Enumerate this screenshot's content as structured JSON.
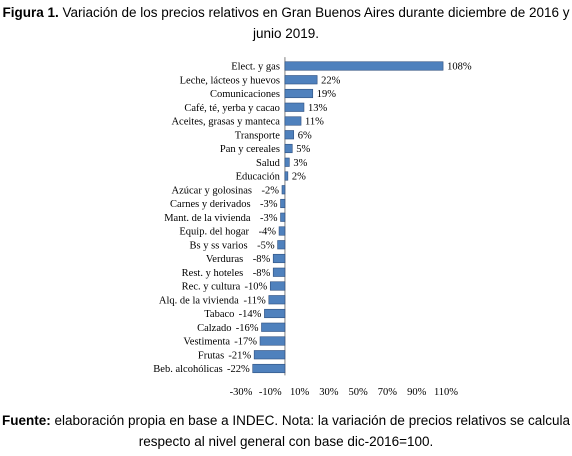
{
  "caption": {
    "figure_label": "Figura 1.",
    "figure_text": "Variación de los precios relativos en Gran Buenos Aires durante diciembre de 2016 y junio 2019.",
    "source_label": "Fuente:",
    "source_text": "elaboración propia en base a INDEC. Nota: la variación de precios relativos se calcula respecto al nivel general con base dic-2016=100."
  },
  "chart_data": {
    "type": "bar",
    "orientation": "horizontal",
    "categories": [
      "Elect. y gas",
      "Leche, lácteos y huevos",
      "Comunicaciones",
      "Café, té, yerba y cacao",
      "Aceites, grasas y manteca",
      "Transporte",
      "Pan y cereales",
      "Salud",
      "Educación",
      "Azúcar y  golosinas",
      "Carnes y derivados",
      "Mant. de la vivienda",
      "Equip. del hogar",
      "Bs y ss varios",
      "Verduras",
      "Rest. y hoteles",
      "Rec. y cultura",
      "Alq. de la vivienda",
      "Tabaco",
      "Calzado",
      "Vestimenta",
      "Frutas",
      "Beb. alcohólicas"
    ],
    "values": [
      108,
      22,
      19,
      13,
      11,
      6,
      5,
      3,
      2,
      -2,
      -3,
      -3,
      -4,
      -5,
      -8,
      -8,
      -10,
      -11,
      -14,
      -16,
      -17,
      -21,
      -22
    ],
    "value_labels": [
      "108%",
      "22%",
      "19%",
      "13%",
      "11%",
      "6%",
      "5%",
      "3%",
      "2%",
      "-2%",
      "-3%",
      "-3%",
      "-4%",
      "-5%",
      "-8%",
      "-8%",
      "-10%",
      "-11%",
      "-14%",
      "-16%",
      "-17%",
      "-21%",
      "-22%"
    ],
    "xlim": [
      -30,
      110
    ],
    "x_ticks": [
      -30,
      -20,
      -10,
      0,
      10,
      20,
      30,
      40,
      50,
      60,
      70,
      80,
      90,
      100,
      110
    ],
    "x_tick_labels": [
      "-30%",
      "-10%",
      "10%",
      "30%",
      "50%",
      "70%",
      "90%",
      "110%"
    ],
    "x_tick_label_values": [
      -30,
      -10,
      10,
      30,
      50,
      70,
      90,
      110
    ],
    "grid": false,
    "bar_color": "#4f81bd",
    "bar_edge_color": "#2f4f7f"
  }
}
